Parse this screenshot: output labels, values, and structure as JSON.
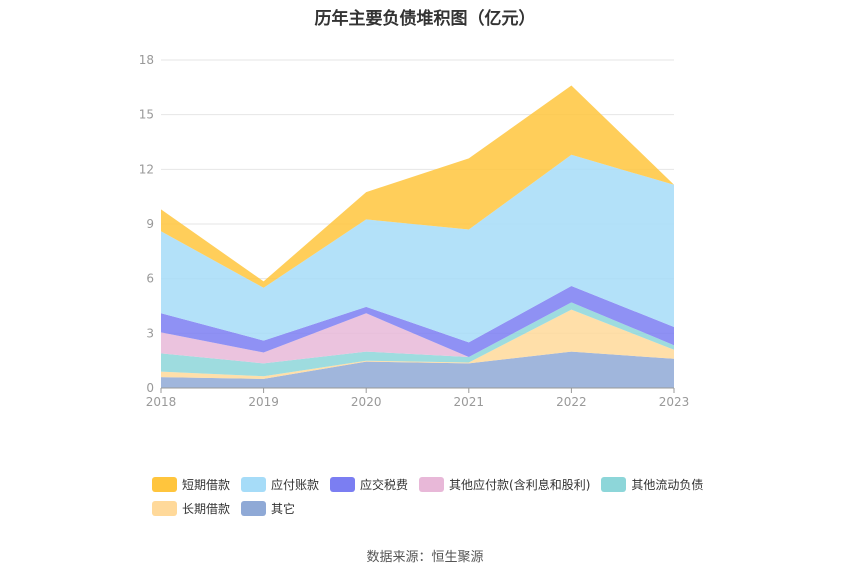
{
  "chart_data": {
    "type": "area",
    "stacked": true,
    "title": "历年主要负债堆积图（亿元）",
    "categories": [
      "2018",
      "2019",
      "2020",
      "2021",
      "2022",
      "2023"
    ],
    "y_ticks": [
      "0",
      "3",
      "6",
      "9",
      "12",
      "15",
      "18"
    ],
    "ylim": [
      0,
      18
    ],
    "grid": "horizontal",
    "legend_position": "bottom",
    "series": [
      {
        "name": "其它",
        "color": "#8fa9d6",
        "values": [
          0.6,
          0.5,
          1.45,
          1.35,
          2.0,
          1.6
        ]
      },
      {
        "name": "长期借款",
        "color": "#ffd99a",
        "values": [
          0.3,
          0.15,
          0.05,
          0.05,
          2.3,
          0.5
        ]
      },
      {
        "name": "其他流动负债",
        "color": "#8dd6d9",
        "values": [
          1.0,
          0.7,
          0.5,
          0.3,
          0.4,
          0.25
        ]
      },
      {
        "name": "其他应付款(含利息和股利)",
        "color": "#e8b8d8",
        "values": [
          1.15,
          0.6,
          2.1,
          0.0,
          0.0,
          0.0
        ]
      },
      {
        "name": "应交税费",
        "color": "#7b7ef2",
        "values": [
          1.05,
          0.65,
          0.35,
          0.8,
          0.9,
          1.0
        ]
      },
      {
        "name": "应付账款",
        "color": "#a6dcf8",
        "values": [
          4.5,
          2.9,
          4.8,
          6.2,
          7.2,
          7.8
        ]
      },
      {
        "name": "短期借款",
        "color": "#ffc53d",
        "values": [
          1.2,
          0.35,
          1.5,
          3.9,
          3.8,
          0.0
        ]
      }
    ]
  },
  "legend": {
    "row1": [
      {
        "label": "短期借款",
        "color": "#ffc53d"
      },
      {
        "label": "应付账款",
        "color": "#a6dcf8"
      },
      {
        "label": "应交税费",
        "color": "#7b7ef2"
      },
      {
        "label": "其他应付款(含利息和股利)",
        "color": "#e8b8d8"
      },
      {
        "label": "其他流动负债",
        "color": "#8dd6d9"
      }
    ],
    "row2": [
      {
        "label": "长期借款",
        "color": "#ffd99a"
      },
      {
        "label": "其它",
        "color": "#8fa9d6"
      }
    ]
  },
  "source_text": "数据来源：恒生聚源"
}
